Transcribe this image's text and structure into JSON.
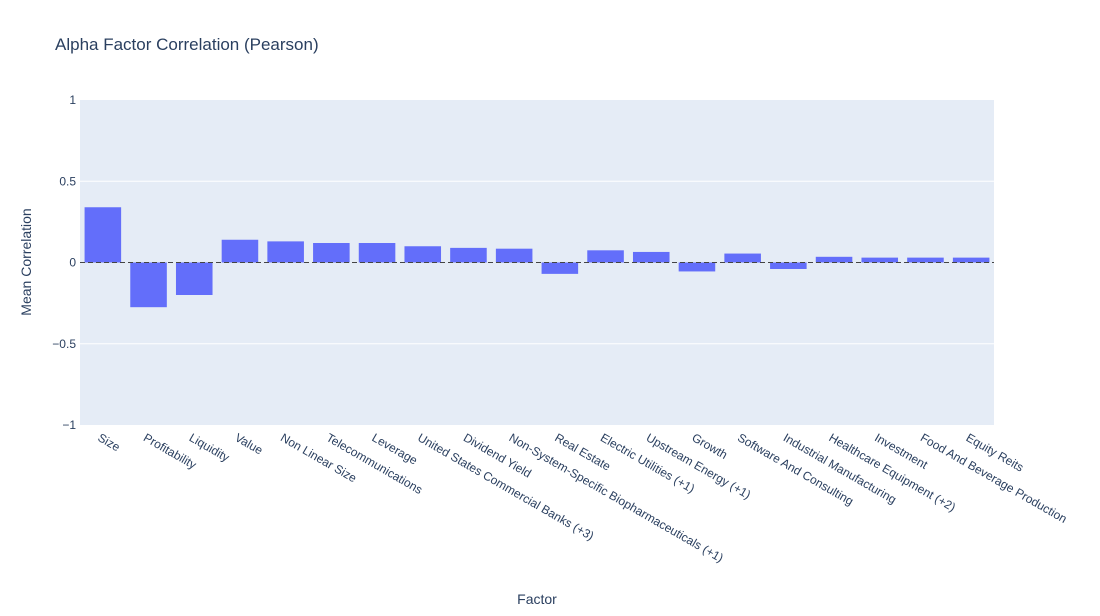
{
  "chart_data": {
    "type": "bar",
    "title": "Alpha Factor Correlation (Pearson)",
    "xlabel": "Factor",
    "ylabel": "Mean Correlation",
    "ylim": [
      -1,
      1
    ],
    "yticks": [
      1,
      0.5,
      0,
      -0.5,
      -1
    ],
    "ytick_labels": [
      "1",
      "0.5",
      "0",
      "−0.5",
      "−1"
    ],
    "grid": true,
    "zero_line": "dashed",
    "categories": [
      "Size",
      "Profitability",
      "Liquidity",
      "Value",
      "Non Linear Size",
      "Telecommunications",
      "Leverage",
      "United States Commercial Banks (+3)",
      "Dividend Yield",
      "Non-System-Specific Biopharmaceuticals (+1)",
      "Real Estate",
      "Electric Utilities (+1)",
      "Upstream Energy (+1)",
      "Growth",
      "Software And Consulting",
      "Industrial Manufacturing",
      "Healthcare Equipment (+2)",
      "Investment",
      "Food And Beverage Production",
      "Equity Reits"
    ],
    "values": [
      0.34,
      -0.275,
      -0.2,
      0.14,
      0.13,
      0.12,
      0.12,
      0.1,
      0.09,
      0.085,
      -0.07,
      0.075,
      0.065,
      -0.055,
      0.055,
      -0.04,
      0.035,
      0.03,
      0.03,
      0.03
    ],
    "colors": {
      "bar": "#636efa",
      "plot_bg": "#e5ecf6",
      "grid": "#ffffff",
      "text": "#2a3f5f",
      "zero_line": "#444444"
    }
  }
}
